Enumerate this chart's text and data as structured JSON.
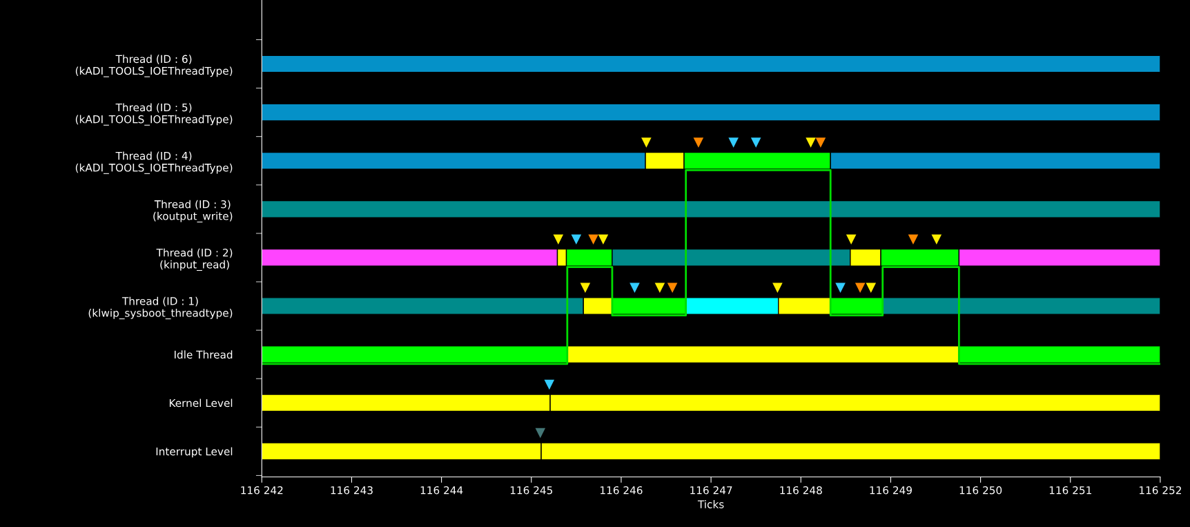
{
  "chart_data": {
    "type": "bar",
    "orientation": "horizontal",
    "xlabel": "Ticks",
    "categories": [
      "Thread (ID : 6)\n(kADI_TOOLS_IOEThreadType)",
      "Thread (ID : 5)\n(kADI_TOOLS_IOEThreadType)",
      "Thread (ID : 4)\n(kADI_TOOLS_IOEThreadType)",
      "Thread (ID : 3)\n(koutput_write)",
      "Thread (ID : 2)\n(kinput_read)",
      "Thread (ID : 1)\n(klwip_sysboot_threadtype)",
      "Idle Thread",
      "Kernel Level",
      "Interrupt Level"
    ],
    "xlim": [
      116242,
      116252
    ],
    "xticks": [
      {
        "value": 116242,
        "label": "116 242"
      },
      {
        "value": 116243,
        "label": "116 243"
      },
      {
        "value": 116244,
        "label": "116 244"
      },
      {
        "value": 116245,
        "label": "116 245"
      },
      {
        "value": 116246,
        "label": "116 246"
      },
      {
        "value": 116247,
        "label": "116 247"
      },
      {
        "value": 116248,
        "label": "116 248"
      },
      {
        "value": 116249,
        "label": "116 249"
      },
      {
        "value": 116250,
        "label": "116 250"
      },
      {
        "value": 116251,
        "label": "116 251"
      },
      {
        "value": 116252,
        "label": "116 252"
      }
    ],
    "grid": false,
    "legend": false,
    "series": [
      {
        "base": [
          116242,
          116242,
          116242,
          116242,
          116242,
          116242,
          116242,
          116242,
          116242
        ],
        "values": [
          10,
          10,
          4.27,
          10,
          3.29,
          3.58,
          3.4,
          3.21,
          3.11
        ],
        "colors": [
          "#0591c8",
          "#0591c8",
          "#0591c8",
          "#008b8b",
          "#ff44ff",
          "#008b8b",
          "#00ff00",
          "#ffff00",
          "#ffff00"
        ]
      },
      {
        "base": [
          null,
          null,
          116246.27,
          null,
          116245.29,
          116245.58,
          116245.4,
          116245.21,
          116245.11
        ],
        "values": [
          null,
          null,
          0.43,
          null,
          0.1,
          0.32,
          4.36,
          6.79,
          6.89
        ],
        "colors": [
          null,
          null,
          "#ffff00",
          null,
          "#ffff00",
          "#ffff00",
          "#ffff00",
          "#ffff00",
          "#ffff00"
        ]
      },
      {
        "base": [
          null,
          null,
          116246.7,
          null,
          116245.39,
          116245.9,
          116249.76,
          null,
          null
        ],
        "values": [
          null,
          null,
          1.63,
          null,
          0.51,
          0.82,
          2.24,
          null,
          null
        ],
        "colors": [
          null,
          null,
          "#00ff00",
          null,
          "#00ff00",
          "#00ff00",
          "#00ff00",
          null,
          null
        ]
      },
      {
        "base": [
          null,
          null,
          116248.33,
          null,
          116245.9,
          116246.72,
          null,
          null,
          null
        ],
        "values": [
          null,
          null,
          3.67,
          null,
          2.65,
          1.03,
          null,
          null,
          null
        ],
        "colors": [
          null,
          null,
          "#0591c8",
          null,
          "#008b8b",
          "#00ffff",
          null,
          null,
          null
        ]
      },
      {
        "base": [
          null,
          null,
          null,
          null,
          116248.55,
          116247.75,
          null,
          null,
          null
        ],
        "values": [
          null,
          null,
          null,
          null,
          0.34,
          0.58,
          null,
          null,
          null
        ],
        "colors": [
          null,
          null,
          null,
          null,
          "#ffff00",
          "#ffff00",
          null,
          null,
          null
        ]
      },
      {
        "base": [
          null,
          null,
          null,
          null,
          116248.89,
          116248.33,
          null,
          null,
          null
        ],
        "values": [
          null,
          null,
          null,
          null,
          0.87,
          0.58,
          null,
          null,
          null
        ],
        "colors": [
          null,
          null,
          null,
          null,
          "#00ff00",
          "#00ff00",
          null,
          null,
          null
        ]
      },
      {
        "base": [
          null,
          null,
          null,
          null,
          116249.76,
          116248.91,
          null,
          null,
          null
        ],
        "values": [
          null,
          null,
          null,
          null,
          2.24,
          3.09,
          null,
          null,
          null
        ],
        "colors": [
          null,
          null,
          null,
          null,
          "#ff44ff",
          "#008b8b",
          null,
          null,
          null
        ]
      },
      {
        "type": "step",
        "color": "#00dd00",
        "values": [
          116242,
          116245.4,
          116245.9,
          116246.72,
          116248.33,
          116248.91,
          116249.76,
          116252
        ],
        "x": [
          "Idle Thread",
          "Thread (ID : 2)\n(kinput_read)",
          "Thread (ID : 1)\n(klwip_sysboot_threadtype)",
          "Thread (ID : 4)\n(kADI_TOOLS_IOEThreadType)",
          "Thread (ID : 1)\n(klwip_sysboot_threadtype)",
          "Thread (ID : 2)\n(kinput_read)",
          "Idle Thread",
          "Idle Thread"
        ]
      },
      {
        "type": "scatter",
        "marker": "triangle",
        "color": "#ffee00",
        "values": [
          116246.28,
          116248.11,
          116245.3,
          116245.8,
          116248.56,
          116249.51,
          116245.6,
          116246.43,
          116247.74,
          116248.78
        ],
        "x": [
          "Thread (ID : 4)\n(kADI_TOOLS_IOEThreadType)",
          "Thread (ID : 4)\n(kADI_TOOLS_IOEThreadType)",
          "Thread (ID : 2)\n(kinput_read)",
          "Thread (ID : 2)\n(kinput_read)",
          "Thread (ID : 2)\n(kinput_read)",
          "Thread (ID : 2)\n(kinput_read)",
          "Thread (ID : 1)\n(klwip_sysboot_threadtype)",
          "Thread (ID : 1)\n(klwip_sysboot_threadtype)",
          "Thread (ID : 1)\n(klwip_sysboot_threadtype)",
          "Thread (ID : 1)\n(klwip_sysboot_threadtype)"
        ]
      },
      {
        "type": "scatter",
        "marker": "triangle",
        "color": "#33ccff",
        "values": [
          116247.25,
          116247.5,
          116245.5,
          116246.15,
          116248.44,
          116245.2
        ],
        "x": [
          "Thread (ID : 4)\n(kADI_TOOLS_IOEThreadType)",
          "Thread (ID : 4)\n(kADI_TOOLS_IOEThreadType)",
          "Thread (ID : 2)\n(kinput_read)",
          "Thread (ID : 1)\n(klwip_sysboot_threadtype)",
          "Thread (ID : 1)\n(klwip_sysboot_threadtype)",
          "Kernel Level"
        ]
      },
      {
        "type": "scatter",
        "marker": "triangle",
        "color": "#ff8800",
        "values": [
          116246.86,
          116248.22,
          116245.69,
          116249.25,
          116246.57,
          116248.66
        ],
        "x": [
          "Thread (ID : 4)\n(kADI_TOOLS_IOEThreadType)",
          "Thread (ID : 4)\n(kADI_TOOLS_IOEThreadType)",
          "Thread (ID : 2)\n(kinput_read)",
          "Thread (ID : 2)\n(kinput_read)",
          "Thread (ID : 1)\n(klwip_sysboot_threadtype)",
          "Thread (ID : 1)\n(klwip_sysboot_threadtype)"
        ]
      },
      {
        "type": "scatter",
        "marker": "triangle",
        "color": "#447777",
        "values": [
          116245.1
        ],
        "x": [
          "Interrupt Level"
        ]
      }
    ]
  }
}
